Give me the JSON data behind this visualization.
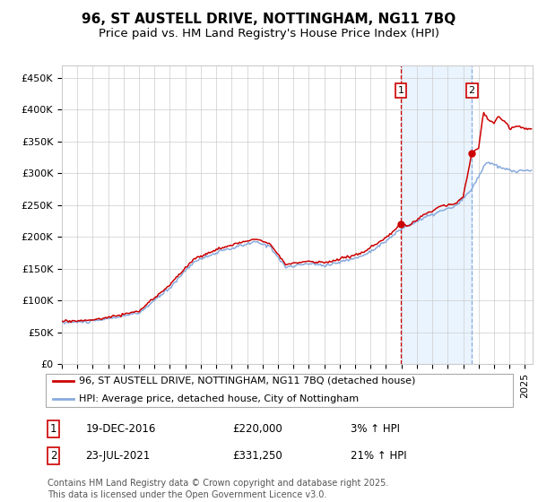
{
  "title1": "96, ST AUSTELL DRIVE, NOTTINGHAM, NG11 7BQ",
  "title2": "Price paid vs. HM Land Registry's House Price Index (HPI)",
  "ylabel_ticks": [
    "£0",
    "£50K",
    "£100K",
    "£150K",
    "£200K",
    "£250K",
    "£300K",
    "£350K",
    "£400K",
    "£450K"
  ],
  "ylabel_values": [
    0,
    50000,
    100000,
    150000,
    200000,
    250000,
    300000,
    350000,
    400000,
    450000
  ],
  "ylim": [
    0,
    470000
  ],
  "xlim_start": 1995.0,
  "xlim_end": 2025.5,
  "sale1_x": 2016.97,
  "sale1_y": 220000,
  "sale2_x": 2021.56,
  "sale2_y": 331250,
  "line_color_property": "#cc0000",
  "line_color_hpi": "#88aadd",
  "vline1_color": "#cc0000",
  "vline2_color": "#88aadd",
  "shade_color": "#ddeeff",
  "legend_label1": "96, ST AUSTELL DRIVE, NOTTINGHAM, NG11 7BQ (detached house)",
  "legend_label2": "HPI: Average price, detached house, City of Nottingham",
  "sale1_date": "19-DEC-2016",
  "sale1_price": "£220,000",
  "sale1_hpi": "3% ↑ HPI",
  "sale2_date": "23-JUL-2021",
  "sale2_price": "£331,250",
  "sale2_hpi": "21% ↑ HPI",
  "footnote": "Contains HM Land Registry data © Crown copyright and database right 2025.\nThis data is licensed under the Open Government Licence v3.0.",
  "bg_color": "#ffffff",
  "grid_color": "#cccccc",
  "title_fontsize": 11,
  "subtitle_fontsize": 9.5,
  "tick_fontsize": 8,
  "legend_fontsize": 8,
  "footnote_fontsize": 7
}
